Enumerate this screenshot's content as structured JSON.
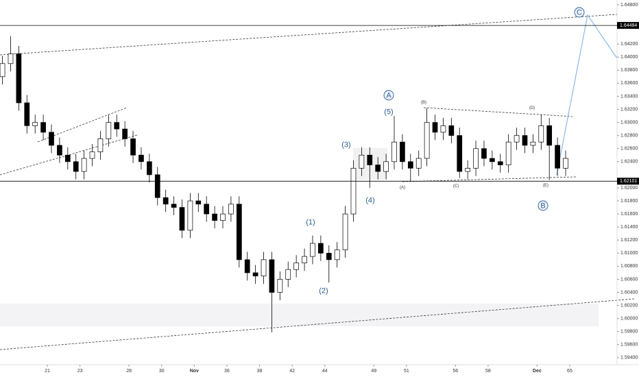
{
  "chart_data": {
    "type": "candlestick",
    "x": [
      16.25,
      16.75,
      17.25,
      17.75,
      18.25,
      18.75,
      21.25,
      21.75,
      22.25,
      22.75,
      23.25,
      23.75,
      24.25,
      24.75,
      25.25,
      25.75,
      28.25,
      28.75,
      29.25,
      29.75,
      30.25,
      30.75,
      31.25,
      31.75,
      32.25,
      32.75,
      35.25,
      35.75,
      36.25,
      36.75,
      37.25,
      37.75,
      38.25,
      38.75,
      39.25,
      39.75,
      42.25,
      42.75,
      43.25,
      43.75,
      44.25,
      44.75,
      45.25,
      45.75,
      46.25,
      46.75,
      49.25,
      49.75,
      50.25,
      50.75,
      51.25,
      51.75,
      52.25,
      52.75,
      53.25,
      53.75,
      56.25,
      56.75,
      57.25,
      57.75,
      58.25,
      58.75,
      59.25,
      59.75,
      60.25,
      60.75,
      63.25,
      63.75,
      64.25,
      64.75
    ],
    "open": [
      1.637,
      1.639,
      1.6405,
      1.633,
      1.6295,
      1.63,
      1.6285,
      1.6265,
      1.625,
      1.624,
      1.6225,
      1.6245,
      1.6255,
      1.6275,
      1.63,
      1.629,
      1.6275,
      1.625,
      1.624,
      1.622,
      1.6185,
      1.6175,
      1.617,
      1.6135,
      1.618,
      1.6175,
      1.616,
      1.615,
      1.616,
      1.6175,
      1.609,
      1.607,
      1.6065,
      1.609,
      1.604,
      1.606,
      1.6075,
      1.6085,
      1.6095,
      1.6115,
      1.61,
      1.609,
      1.6105,
      1.616,
      1.623,
      1.625,
      1.6235,
      1.6225,
      1.624,
      1.627,
      1.624,
      1.623,
      1.6245,
      1.63,
      1.6285,
      1.6295,
      1.628,
      1.6225,
      1.623,
      1.626,
      1.6245,
      1.624,
      1.6235,
      1.627,
      1.628,
      1.6265,
      1.627,
      1.6295,
      1.6265,
      1.623
    ],
    "high": [
      1.6402,
      1.6432,
      1.6417,
      1.6342,
      1.6312,
      1.6312,
      1.6297,
      1.6277,
      1.6262,
      1.6252,
      1.6257,
      1.6267,
      1.6287,
      1.6312,
      1.6312,
      1.6302,
      1.6287,
      1.6262,
      1.6252,
      1.6232,
      1.6197,
      1.6187,
      1.6182,
      1.6192,
      1.6192,
      1.6187,
      1.6172,
      1.6172,
      1.6187,
      1.6187,
      1.6102,
      1.6082,
      1.6102,
      1.6102,
      1.6072,
      1.6087,
      1.6097,
      1.6107,
      1.6127,
      1.6127,
      1.6112,
      1.6117,
      1.6172,
      1.6242,
      1.6262,
      1.6262,
      1.6247,
      1.6252,
      1.631,
      1.6282,
      1.6252,
      1.6257,
      1.6322,
      1.6312,
      1.6307,
      1.6307,
      1.6292,
      1.6242,
      1.6272,
      1.6272,
      1.6257,
      1.6252,
      1.6282,
      1.6292,
      1.6292,
      1.6282,
      1.6312,
      1.6307,
      1.6277,
      1.6257
    ],
    "low": [
      1.6358,
      1.6378,
      1.6318,
      1.6283,
      1.6283,
      1.6273,
      1.6253,
      1.6238,
      1.6228,
      1.6213,
      1.6213,
      1.6233,
      1.6243,
      1.6263,
      1.6278,
      1.6263,
      1.6238,
      1.6228,
      1.6208,
      1.6173,
      1.6163,
      1.6158,
      1.6123,
      1.6123,
      1.6163,
      1.6148,
      1.6138,
      1.6138,
      1.6148,
      1.6078,
      1.6058,
      1.6053,
      1.6053,
      1.5979,
      1.6028,
      1.6048,
      1.6063,
      1.6073,
      1.6083,
      1.6088,
      1.6055,
      1.6078,
      1.6093,
      1.6148,
      1.6218,
      1.62,
      1.6213,
      1.6213,
      1.6228,
      1.6228,
      1.621,
      1.6218,
      1.6233,
      1.6273,
      1.6273,
      1.6268,
      1.6215,
      1.6213,
      1.6218,
      1.6233,
      1.6228,
      1.6223,
      1.6223,
      1.6258,
      1.6253,
      1.6253,
      1.6258,
      1.6212,
      1.6218,
      1.6218
    ],
    "close": [
      1.639,
      1.6405,
      1.633,
      1.6295,
      1.63,
      1.6285,
      1.6265,
      1.625,
      1.624,
      1.6225,
      1.6245,
      1.6255,
      1.6275,
      1.63,
      1.629,
      1.6275,
      1.625,
      1.624,
      1.622,
      1.6185,
      1.6175,
      1.617,
      1.6135,
      1.618,
      1.6175,
      1.616,
      1.615,
      1.616,
      1.6175,
      1.609,
      1.607,
      1.6065,
      1.609,
      1.604,
      1.606,
      1.6075,
      1.6085,
      1.6095,
      1.6115,
      1.61,
      1.609,
      1.6105,
      1.616,
      1.623,
      1.625,
      1.6235,
      1.6225,
      1.624,
      1.627,
      1.624,
      1.623,
      1.6245,
      1.63,
      1.6285,
      1.6295,
      1.628,
      1.6225,
      1.623,
      1.626,
      1.6245,
      1.624,
      1.6235,
      1.627,
      1.628,
      1.6265,
      1.627,
      1.6295,
      1.6265,
      1.623,
      1.6245
    ],
    "up_color": "#ffffff",
    "down_color": "#000000",
    "xlim": [
      16.1,
      67.9
    ],
    "xticks": [
      21,
      23,
      28,
      30,
      {
        "value": 32,
        "label": "Nov"
      },
      36,
      38,
      42,
      44,
      49,
      51,
      56,
      58,
      {
        "value": 63,
        "label": "Dec"
      },
      65
    ],
    "ylim": [
      1.59315,
      1.64873
    ],
    "yticks": [
      {
        "value": 1.594,
        "label": "1.59400"
      },
      {
        "value": 1.596,
        "label": "1.59600"
      },
      {
        "value": 1.598,
        "label": "1.59800"
      },
      {
        "value": 1.6,
        "label": "1.60000"
      },
      {
        "value": 1.602,
        "label": "1.60200"
      },
      {
        "value": 1.604,
        "label": "1.60400"
      },
      {
        "value": 1.606,
        "label": "1.60600"
      },
      {
        "value": 1.608,
        "label": "1.60800"
      },
      {
        "value": 1.61,
        "label": "1.61000"
      },
      {
        "value": 1.612,
        "label": "1.61200"
      },
      {
        "value": 1.614,
        "label": "1.61400"
      },
      {
        "value": 1.616,
        "label": "1.61600"
      },
      {
        "value": 1.618,
        "label": "1.61800"
      },
      {
        "value": 1.62,
        "label": "1.62000"
      },
      {
        "value": 1.624,
        "label": "1.62400"
      },
      {
        "value": 1.626,
        "label": "1.62600"
      },
      {
        "value": 1.628,
        "label": "1.62800"
      },
      {
        "value": 1.63,
        "label": "1.63000"
      },
      {
        "value": 1.632,
        "label": "1.63200"
      },
      {
        "value": 1.634,
        "label": "1.63400"
      },
      {
        "value": 1.636,
        "label": "1.63600"
      },
      {
        "value": 1.638,
        "label": "1.63800"
      },
      {
        "value": 1.64,
        "label": "1.64000"
      },
      {
        "value": 1.642,
        "label": "1.64200"
      },
      {
        "value": 1.648,
        "label": "1.64800"
      }
    ],
    "price_lines": [
      1.64484,
      1.62101
    ],
    "annotations": [
      "A",
      "(5)",
      "(3)",
      "(4)",
      "(1)",
      "(2)",
      "B",
      "(A)",
      "(B)",
      "(C)",
      "(D)",
      "(E)",
      "C"
    ],
    "grid": false
  }
}
